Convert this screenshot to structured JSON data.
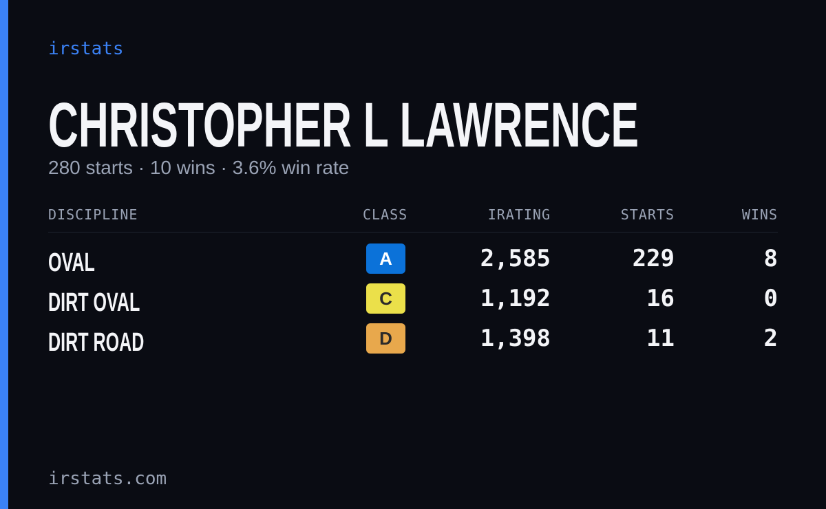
{
  "brand": "irstats",
  "name": "CHRISTOPHER L LAWRENCE",
  "summary": "280 starts · 10 wins · 3.6% win rate",
  "table": {
    "headers": [
      "DISCIPLINE",
      "CLASS",
      "IRATING",
      "STARTS",
      "WINS"
    ],
    "rows": [
      {
        "discipline": "OVAL",
        "class": "A",
        "class_color": "#0b72d9",
        "irating": "2,585",
        "starts": "229",
        "wins": "8"
      },
      {
        "discipline": "DIRT OVAL",
        "class": "C",
        "class_color": "#ebe04a",
        "irating": "1,192",
        "starts": "16",
        "wins": "0"
      },
      {
        "discipline": "DIRT ROAD",
        "class": "D",
        "class_color": "#e8a84c",
        "irating": "1,398",
        "starts": "11",
        "wins": "2"
      }
    ]
  },
  "footer": "irstats.com"
}
